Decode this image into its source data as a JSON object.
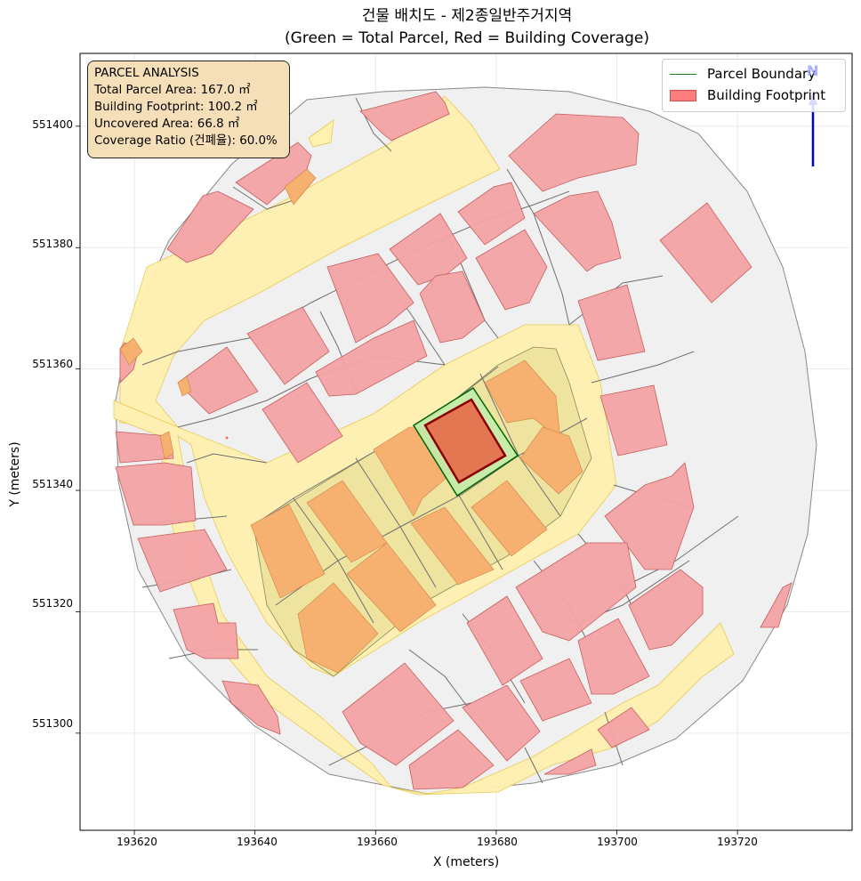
{
  "title_line1": "건물 배치도 - 제2종일반주거지역",
  "title_line2": "(Green = Total Parcel, Red = Building Coverage)",
  "axes": {
    "xlabel": "X (meters)",
    "ylabel": "Y (meters)",
    "xticks": [
      "193620",
      "193640",
      "193660",
      "193680",
      "193700",
      "193720"
    ],
    "yticks": [
      "551400",
      "551380",
      "551360",
      "551340",
      "551320",
      "551300"
    ]
  },
  "info_box": {
    "heading": "PARCEL ANALYSIS",
    "total_area": "Total Parcel Area: 167.0 ㎡",
    "footprint": "Building Footprint: 100.2 ㎡",
    "uncovered": "Uncovered Area: 66.8 ㎡",
    "coverage": "Coverage Ratio (건폐율): 60.0%"
  },
  "legend": {
    "parcel_boundary": "Parcel Boundary",
    "building_footprint": "Building Footprint"
  },
  "north_label": "N",
  "colors": {
    "parcel_green": "#90e080",
    "parcel_edge": "#006400",
    "building_red": "#e07050",
    "building_edge": "#8b0000",
    "neighbor_building": "#f4a4a6",
    "road": "#fff2b0",
    "block_olive": "#efe3a0",
    "ground": "#f0f0f0",
    "info_bg": "#f5dfb9",
    "north_arrow": "#0000dd"
  },
  "chart_data": {
    "type": "map",
    "xlim": [
      193611,
      193739
    ],
    "ylim": [
      551284,
      551412
    ],
    "grid": true,
    "legend_position": "top-right",
    "info_position": "top-left",
    "target_parcel": {
      "total_area_m2": 167.0,
      "footprint_m2": 100.2,
      "uncovered_m2": 66.8,
      "coverage_ratio_pct": 60.0
    }
  }
}
